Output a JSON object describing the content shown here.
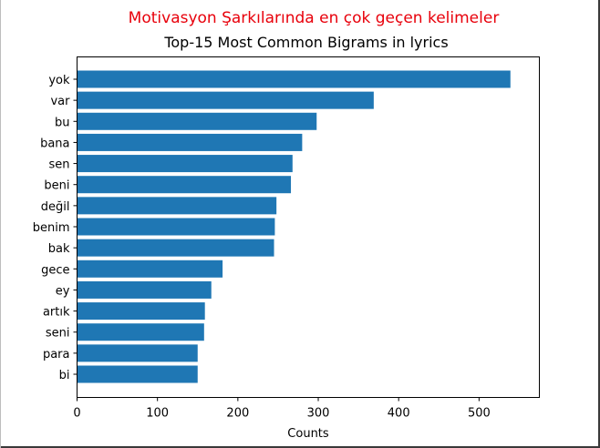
{
  "header": {
    "caption": "Motivasyon Şarkılarında en çok geçen kelimeler"
  },
  "colors": {
    "bar": "#1f77b4",
    "caption": "#e8000b",
    "axis": "#000000"
  },
  "chart_data": {
    "type": "bar",
    "orientation": "horizontal",
    "title": "Top-15 Most Common Bigrams in lyrics",
    "xlabel": "Counts",
    "ylabel": "",
    "xlim": [
      0,
      575
    ],
    "xticks": [
      0,
      100,
      200,
      300,
      400,
      500
    ],
    "grid": false,
    "categories": [
      "yok",
      "var",
      "bu",
      "bana",
      "sen",
      "beni",
      "değil",
      "benim",
      "bak",
      "gece",
      "ey",
      "artık",
      "seni",
      "para",
      "bi"
    ],
    "values": [
      539,
      369,
      298,
      280,
      268,
      266,
      248,
      246,
      245,
      181,
      167,
      159,
      158,
      150,
      150
    ]
  }
}
